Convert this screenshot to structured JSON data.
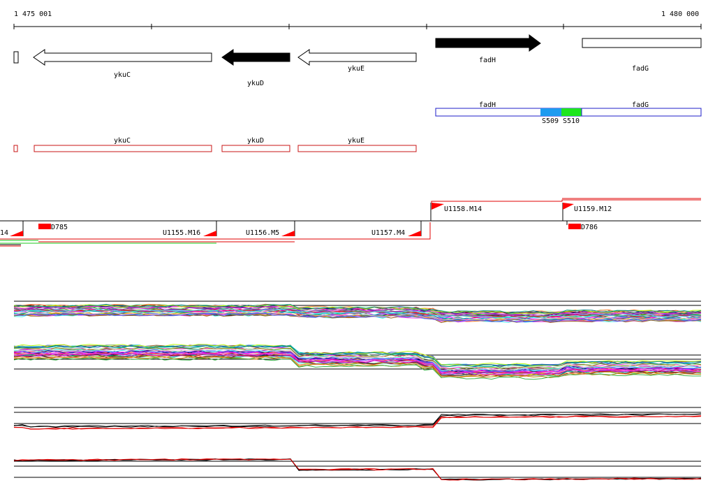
{
  "ruler": {
    "start_label": "1 475 001",
    "end_label": "1 480 000"
  },
  "colors": {
    "outline": "#000000",
    "filled_gene": "#000000",
    "transcript_box": "#c81414",
    "segment_box": "#1e1ec8",
    "segment_blue": "#1e9bf0",
    "segment_green": "#1ee61e",
    "marker_red": "#ff0000",
    "track_line": "#000000"
  },
  "genes": [
    {
      "label": "",
      "direction": "left",
      "filled": false
    },
    {
      "label": "ykuC",
      "direction": "left",
      "filled": false
    },
    {
      "label": "ykuD",
      "direction": "left",
      "filled": true
    },
    {
      "label": "ykuE",
      "direction": "left",
      "filled": false
    },
    {
      "label": "fadH",
      "direction": "right",
      "filled": true
    },
    {
      "label": "fadG",
      "direction": "none",
      "filled": false
    }
  ],
  "segments": {
    "labels": [
      "fadH",
      "fadG"
    ],
    "markers": [
      "S509",
      "S510"
    ]
  },
  "transcripts": [
    {
      "label": ""
    },
    {
      "label": "ykuC"
    },
    {
      "label": "ykuD"
    },
    {
      "label": "ykuE"
    }
  ],
  "promoters": [
    {
      "label": "14",
      "position": "far-left"
    },
    {
      "label": "D785",
      "position": "left"
    },
    {
      "label": "U1155.M16",
      "position": "mid-left"
    },
    {
      "label": "U1156.M5",
      "position": "middle"
    },
    {
      "label": "U1157.M4",
      "position": "mid-right"
    },
    {
      "label": "U1158.M14",
      "position": "upper-right"
    },
    {
      "label": "U1159.M12",
      "position": "upper-far-right"
    },
    {
      "label": "D786",
      "position": "far-right"
    }
  ],
  "expression_tracks": [
    {
      "name": "",
      "line_count": 30,
      "style": "multicolor"
    },
    {
      "name": "",
      "line_count": 30,
      "style": "multicolor"
    },
    {
      "name": "",
      "line_count": 4,
      "style": "black-red"
    },
    {
      "name": "",
      "line_count": 4,
      "style": "black-red"
    }
  ]
}
